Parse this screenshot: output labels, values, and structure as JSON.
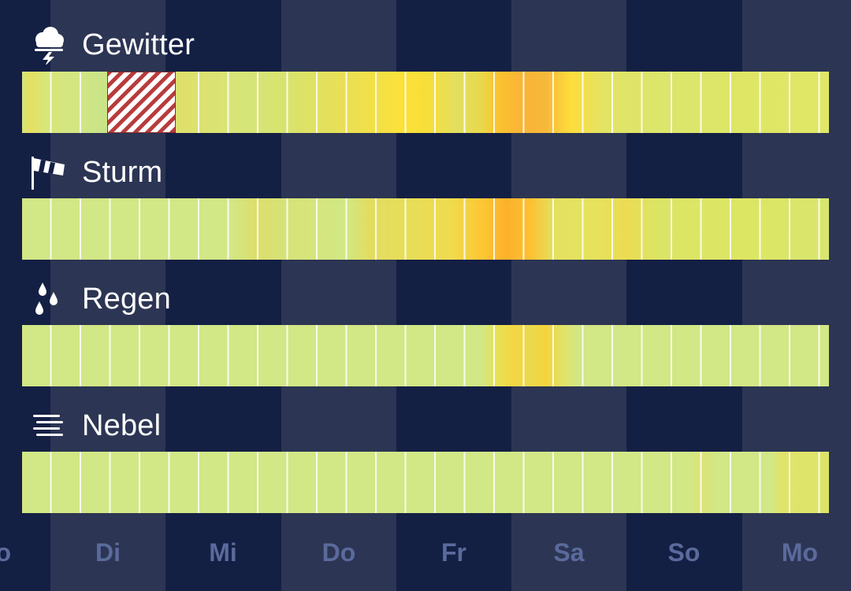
{
  "rows": [
    {
      "label": "Gewitter",
      "icon": "thunderstorm-icon",
      "gradient": "linear-gradient(90deg, #d7e37a 0%, #e4e062 1%, #d8e679 3%, #d2e683 7%, #c9e487 10%, #d6e37a 14%, #dfe06c 20%, #d6e578 28%, #d9e36d 33%, #e9df55 40%, #fbe13a 47%, #f8de38 50%, #e2df60 54%, #e9d84a 57%, #fbc22e 59%, #f9b436 62%, #f6b93a 65%, #fddd3c 68%, #e3e364 72%, #dbe66c 80%, #dfe665 90%, #e0e766 100%)",
      "hatched": true
    },
    {
      "label": "Sturm",
      "icon": "windsock-icon",
      "gradient": "linear-gradient(90deg, #d2e785 0%, #d2e785 26%, #ddde6b 29%, #d7e276 32%, #d6e57c 36%, #d1e885 40%, #e2dd60 43%, #e6dd5a 47%, #efdc4f 53%, #fcc733 57%, #fcb12b 60%, #fcc131 63%, #e4e161 66%, #e6e25d 71%, #ebdc53 75%, #dbe565 79%, #dde663 90%, #d8e66e 100%)",
      "hatched": false
    },
    {
      "label": "Regen",
      "icon": "raindrops-icon",
      "gradient": "linear-gradient(90deg, #d2e785 0%, #d2e785 57%, #e8e152 59%, #f4d544 61%, #ead94b 63%, #f5d43d 65%, #e2e268 67%, #d2e785 69%, #d2e785 100%)",
      "hatched": false
    },
    {
      "label": "Nebel",
      "icon": "fog-icon",
      "gradient": "linear-gradient(90deg, #d2e785 0%, #d2e785 83%, #dde472 84%, #d2e785 86%, #d2e785 93%, #e0e46a 94%, #dce468 100%)",
      "hatched": false
    }
  ],
  "days": [
    "Mo",
    "Di",
    "Mi",
    "Do",
    "Fr",
    "Sa",
    "So",
    "Mo"
  ]
}
